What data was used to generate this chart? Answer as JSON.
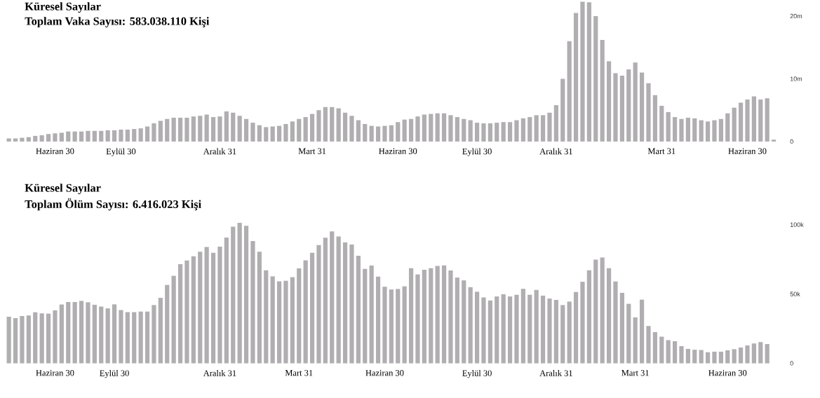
{
  "chart_data": [
    {
      "type": "bar",
      "title": "Küresel Sayılar",
      "subtitle": "Toplam Vaka Sayısı: 583.038.110 Kişi",
      "categories": [
        null,
        null,
        null,
        null,
        null,
        null,
        null,
        "Haziran 30",
        null,
        null,
        null,
        null,
        null,
        null,
        null,
        null,
        null,
        "Eylül 30",
        null,
        null,
        null,
        null,
        null,
        null,
        null,
        null,
        null,
        null,
        null,
        null,
        null,
        null,
        "Aralık 31",
        null,
        null,
        null,
        null,
        null,
        null,
        null,
        null,
        null,
        null,
        null,
        null,
        null,
        "Mart 31",
        null,
        null,
        null,
        null,
        null,
        null,
        null,
        null,
        null,
        null,
        null,
        null,
        "Haziran 30",
        null,
        null,
        null,
        null,
        null,
        null,
        null,
        null,
        null,
        null,
        null,
        "Eylül 30",
        null,
        null,
        null,
        null,
        null,
        null,
        null,
        null,
        null,
        null,
        null,
        "Aralık 31",
        null,
        null,
        null,
        null,
        null,
        null,
        null,
        null,
        null,
        null,
        null,
        null,
        null,
        null,
        null,
        "Mart 31",
        null,
        null,
        null,
        null,
        null,
        null,
        null,
        null,
        null,
        null,
        null,
        null,
        "Haziran 30",
        null,
        null,
        null,
        null
      ],
      "values": [
        0.5,
        0.5,
        0.6,
        0.7,
        0.9,
        1.0,
        1.2,
        1.3,
        1.4,
        1.6,
        1.6,
        1.6,
        1.7,
        1.7,
        1.7,
        1.8,
        1.8,
        1.9,
        1.9,
        2.0,
        2.1,
        2.4,
        2.9,
        3.3,
        3.6,
        3.8,
        3.8,
        3.8,
        4.0,
        4.1,
        4.3,
        3.9,
        4.0,
        4.8,
        4.6,
        4.1,
        3.6,
        3.0,
        2.6,
        2.3,
        2.4,
        2.5,
        2.8,
        3.2,
        3.6,
        3.9,
        4.4,
        5.0,
        5.5,
        5.5,
        5.3,
        4.6,
        4.1,
        3.4,
        2.8,
        2.5,
        2.4,
        2.5,
        2.6,
        3.1,
        3.5,
        3.6,
        4.0,
        4.3,
        4.4,
        4.5,
        4.5,
        4.2,
        3.9,
        3.6,
        3.4,
        3.0,
        2.9,
        2.9,
        3.0,
        3.1,
        3.1,
        3.4,
        3.7,
        3.9,
        4.2,
        4.2,
        4.6,
        5.8,
        10.0,
        16.0,
        20.5,
        22.3,
        22.2,
        20.0,
        16.2,
        12.8,
        10.9,
        10.5,
        11.5,
        12.6,
        11.0,
        9.3,
        7.4,
        5.7,
        4.7,
        3.9,
        3.6,
        3.8,
        3.7,
        3.4,
        3.2,
        3.4,
        3.6,
        4.5,
        5.4,
        6.2,
        6.7,
        7.2,
        6.7,
        6.9,
        0.3
      ],
      "color": "#b0aeb0",
      "ylim": [
        0,
        22.5
      ],
      "yticks": [
        0,
        {
          "value": 10,
          "label": "10m"
        },
        {
          "value": 20,
          "label": "20m"
        }
      ]
    },
    {
      "type": "bar",
      "title": "Küresel Sayılar",
      "subtitle": "Toplam Ölüm Sayısı: 6.416.023 Kişi",
      "categories": [
        null,
        null,
        null,
        null,
        null,
        null,
        null,
        "Haziran 30",
        null,
        null,
        null,
        null,
        null,
        null,
        null,
        null,
        "Eylül 30",
        null,
        null,
        null,
        null,
        null,
        null,
        null,
        null,
        null,
        null,
        null,
        null,
        null,
        null,
        null,
        "Aralık 31",
        null,
        null,
        null,
        null,
        null,
        null,
        null,
        null,
        null,
        null,
        null,
        "Mart 31",
        null,
        null,
        null,
        null,
        null,
        null,
        null,
        null,
        null,
        null,
        null,
        null,
        "Haziran 30",
        null,
        null,
        null,
        null,
        null,
        null,
        null,
        null,
        null,
        null,
        null,
        null,
        null,
        "Eylül 30",
        null,
        null,
        null,
        null,
        null,
        null,
        null,
        null,
        null,
        null,
        null,
        "Aralık 31",
        null,
        null,
        null,
        null,
        null,
        null,
        null,
        null,
        null,
        null,
        null,
        "Mart 31",
        null,
        null,
        null,
        null,
        null,
        null,
        null,
        null,
        null,
        null,
        null,
        null,
        null,
        "Haziran 30",
        null,
        null,
        null,
        null,
        null,
        null,
        null
      ],
      "values": [
        33.6,
        32.6,
        34.1,
        34.5,
        36.8,
        36.0,
        35.8,
        38.2,
        42.4,
        44.2,
        44.2,
        45.0,
        44.0,
        42.2,
        40.9,
        39.6,
        42.5,
        38.4,
        36.9,
        36.9,
        37.3,
        37.3,
        42.0,
        47.2,
        56.5,
        63.1,
        71.5,
        74.1,
        77.1,
        80.4,
        83.8,
        79.7,
        84.1,
        90.7,
        98.5,
        101.3,
        99.1,
        88.1,
        80.4,
        67.0,
        62.7,
        59.1,
        59.5,
        62.1,
        68.5,
        74.3,
        79.7,
        85.3,
        90.5,
        95.1,
        91.4,
        87.1,
        85.6,
        77.6,
        68.1,
        70.5,
        62.5,
        55.2,
        53.2,
        53.6,
        55.5,
        68.6,
        64.1,
        67.5,
        68.6,
        70.2,
        70.6,
        66.9,
        61.8,
        59.8,
        54.9,
        51.6,
        47.5,
        45.3,
        48.2,
        49.8,
        48.2,
        49.4,
        53.7,
        49.4,
        52.9,
        48.8,
        46.7,
        45.7,
        42.0,
        44.5,
        51.4,
        58.8,
        67.1,
        74.7,
        76.3,
        68.6,
        59.0,
        50.8,
        42.9,
        33.1,
        45.9,
        26.9,
        22.5,
        19.2,
        16.7,
        15.9,
        12.4,
        10.4,
        9.8,
        9.6,
        8.0,
        8.4,
        8.4,
        9.4,
        10.2,
        11.4,
        12.9,
        14.3,
        15.3,
        13.9,
        null
      ],
      "color": "#b0aeb0",
      "ylim": [
        0,
        103
      ],
      "yticks": [
        0,
        {
          "value": 50,
          "label": "50k"
        },
        {
          "value": 100,
          "label": "100k"
        }
      ]
    }
  ]
}
